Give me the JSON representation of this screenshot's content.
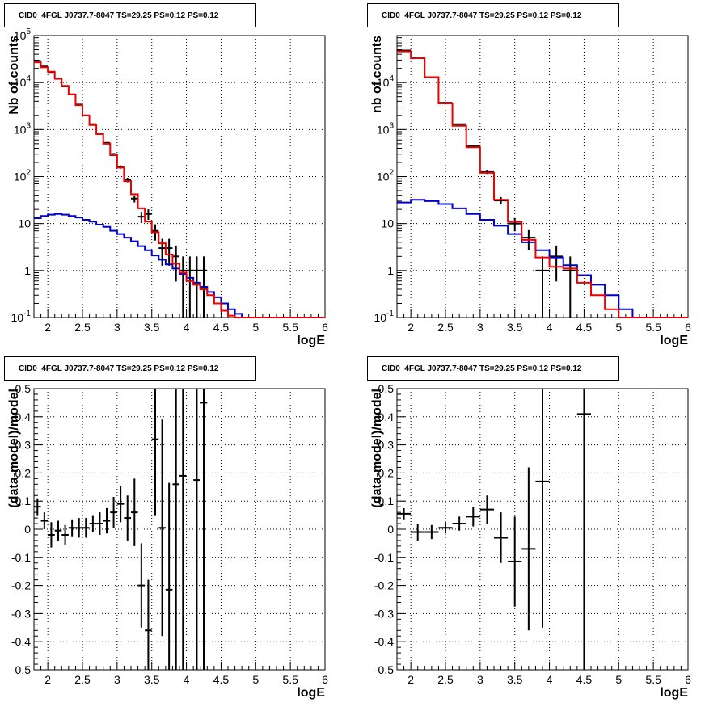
{
  "colors": {
    "data": "#000000",
    "total_model": "#ee0000",
    "background_model": "#0000cc"
  },
  "pads": [
    {
      "title": "CID0_4FGL J0737.7-8047 TS=29.25 PS=0.12 PS=0.12",
      "xlabel": "logE",
      "ylabel": "Nb of counts"
    },
    {
      "title": "CID0_4FGL J0737.7-8047 TS=29.25 PS=0.12 PS=0.12",
      "xlabel": "logE",
      "ylabel": "nb of counts"
    },
    {
      "title": "CID0_4FGL J0737.7-8047 TS=29.25 PS=0.12 PS=0.12",
      "xlabel": "logE",
      "ylabel": "(data-model)/model"
    },
    {
      "title": "CID0_4FGL J0737.7-8047 TS=29.25 PS=0.12 PS=0.12",
      "xlabel": "logE",
      "ylabel": "(data-model)/model"
    }
  ],
  "chart_data": [
    {
      "type": "line",
      "title": "CID0_4FGL J0737.7-8047 TS=29.25 PS=0.12 PS=0.12",
      "xlabel": "logE",
      "ylabel": "Nb of counts",
      "log_y": true,
      "grid": true,
      "xlim": [
        1.8,
        6.0
      ],
      "ylim": [
        0.1,
        100000
      ],
      "xticks": [
        "2",
        "2.5",
        "3",
        "3.5",
        "4",
        "4.5",
        "5",
        "5.5",
        "6"
      ],
      "yticks": [
        "10^{-1}",
        "1",
        "10",
        "10^{2}",
        "10^{3}",
        "10^{4}",
        "10^{5}"
      ],
      "bin_edges": [
        1.8,
        1.9,
        2.0,
        2.1,
        2.2,
        2.3,
        2.4,
        2.5,
        2.6,
        2.7,
        2.8,
        2.9,
        3.0,
        3.1,
        3.2,
        3.3,
        3.4,
        3.5,
        3.6,
        3.7,
        3.8,
        3.9,
        4.0,
        4.1,
        4.2,
        4.3,
        4.4,
        4.5,
        4.6,
        4.7,
        4.8,
        4.9,
        5.0,
        5.1,
        5.2,
        5.3,
        5.4,
        5.5,
        5.6,
        5.7,
        5.8,
        5.9,
        6.0
      ],
      "series": [
        {
          "role": "total_model",
          "values": [
            27000,
            21000,
            17000,
            12000,
            8500,
            5600,
            3300,
            2000,
            1250,
            800,
            500,
            285,
            155,
            80,
            42,
            21,
            11,
            6.5,
            3.8,
            2.2,
            1.4,
            0.9,
            0.6,
            0.5,
            0.4,
            0.3,
            0.2,
            0.14,
            0.11,
            0.1,
            0.1,
            0.1,
            0.1,
            0.1,
            0.1,
            0.1,
            0.1,
            0.1,
            0.1,
            0.1,
            0.1,
            0.1
          ]
        },
        {
          "role": "background_model",
          "values": [
            13,
            14.5,
            15.5,
            16,
            15.5,
            14.5,
            13.5,
            12,
            11,
            9.5,
            8.5,
            7,
            6,
            5,
            4.2,
            3.3,
            2.7,
            2.1,
            1.7,
            1.35,
            1.1,
            0.85,
            0.7,
            0.55,
            0.45,
            0.35,
            0.27,
            0.2,
            0.15,
            0.12,
            0.1,
            0.1,
            0.1,
            0.1,
            0.1,
            0.1,
            0.1,
            0.1,
            0.1,
            0.1,
            0.1,
            0.1
          ]
        },
        {
          "role": "data",
          "points": [
            {
              "x": 1.85,
              "y": 29000
            },
            {
              "x": 1.95,
              "y": 22000
            },
            {
              "x": 2.05,
              "y": 16700
            },
            {
              "x": 2.15,
              "y": 12000
            },
            {
              "x": 2.25,
              "y": 8300
            },
            {
              "x": 2.35,
              "y": 5600
            },
            {
              "x": 2.45,
              "y": 3400
            },
            {
              "x": 2.55,
              "y": 2000
            },
            {
              "x": 2.65,
              "y": 1300
            },
            {
              "x": 2.75,
              "y": 830
            },
            {
              "x": 2.85,
              "y": 520
            },
            {
              "x": 2.95,
              "y": 300
            },
            {
              "x": 3.05,
              "y": 160
            },
            {
              "x": 3.15,
              "y": 85
            },
            {
              "x": 3.25,
              "y": 34
            },
            {
              "x": 3.35,
              "y": 14
            },
            {
              "x": 3.45,
              "y": 16
            },
            {
              "x": 3.55,
              "y": 7
            },
            {
              "x": 3.65,
              "y": 3
            },
            {
              "x": 3.75,
              "y": 3
            },
            {
              "x": 3.85,
              "y": 2
            },
            {
              "x": 3.95,
              "y": 1
            },
            {
              "x": 4.05,
              "y": 1
            },
            {
              "x": 4.15,
              "y": 1
            },
            {
              "x": 4.25,
              "y": 1
            }
          ]
        }
      ]
    },
    {
      "type": "line",
      "title": "CID0_4FGL J0737.7-8047 TS=29.25 PS=0.12 PS=0.12",
      "xlabel": "logE",
      "ylabel": "nb of counts",
      "log_y": true,
      "grid": true,
      "xlim": [
        1.8,
        6.0
      ],
      "ylim": [
        0.1,
        100000
      ],
      "xticks": [
        "2",
        "2.5",
        "3",
        "3.5",
        "4",
        "4.5",
        "5",
        "5.5",
        "6"
      ],
      "yticks": [
        "10^{-1}",
        "1",
        "10",
        "10^{2}",
        "10^{3}",
        "10^{4}"
      ],
      "bin_edges": [
        1.8,
        2.0,
        2.2,
        2.4,
        2.6,
        2.8,
        3.0,
        3.2,
        3.4,
        3.6,
        3.8,
        4.0,
        4.2,
        4.4,
        4.6,
        4.8,
        5.0,
        5.2,
        5.4,
        5.6,
        5.8,
        6.0
      ],
      "series": [
        {
          "role": "total_model",
          "values": [
            46000,
            33000,
            13000,
            3600,
            1200,
            420,
            120,
            32,
            11,
            4.5,
            1.9,
            1.2,
            1.1,
            0.55,
            0.3,
            0.15,
            0.1,
            0.1,
            0.1,
            0.1,
            0.1
          ]
        },
        {
          "role": "background_model",
          "values": [
            28,
            32,
            30,
            26,
            21,
            16,
            12,
            9,
            6,
            4,
            2.7,
            1.9,
            1.3,
            0.8,
            0.5,
            0.3,
            0.15,
            0.1,
            0.1,
            0.1,
            0.1
          ]
        },
        {
          "role": "data",
          "points": [
            {
              "x": 1.9,
              "y": 48000
            },
            {
              "x": 2.1,
              "y": 33000
            },
            {
              "x": 2.3,
              "y": 13000
            },
            {
              "x": 2.5,
              "y": 3700
            },
            {
              "x": 2.7,
              "y": 1300
            },
            {
              "x": 2.9,
              "y": 440
            },
            {
              "x": 3.1,
              "y": 125
            },
            {
              "x": 3.3,
              "y": 31
            },
            {
              "x": 3.5,
              "y": 10
            },
            {
              "x": 3.7,
              "y": 5
            },
            {
              "x": 3.9,
              "y": 1
            },
            {
              "x": 4.1,
              "y": 2
            },
            {
              "x": 4.3,
              "y": 1
            }
          ]
        }
      ]
    },
    {
      "type": "scatter",
      "title": "CID0_4FGL J0737.7-8047 TS=29.25 PS=0.12 PS=0.12",
      "xlabel": "logE",
      "ylabel": "(data-model)/model",
      "grid": true,
      "xlim": [
        1.8,
        6.0
      ],
      "ylim": [
        -0.5,
        0.5
      ],
      "xticks": [
        "2",
        "2.5",
        "3",
        "3.5",
        "4",
        "4.5",
        "5",
        "5.5",
        "6"
      ],
      "yticks": [
        "-0.5",
        "-0.4",
        "-0.3",
        "-0.2",
        "-0.1",
        "0",
        "0.1",
        "0.2",
        "0.3",
        "0.4",
        "0.5"
      ],
      "points": [
        {
          "x": 1.85,
          "y": 0.08,
          "err": 0.03
        },
        {
          "x": 1.95,
          "y": 0.03,
          "err": 0.03
        },
        {
          "x": 2.05,
          "y": -0.02,
          "err": 0.045
        },
        {
          "x": 2.15,
          "y": -0.005,
          "err": 0.035
        },
        {
          "x": 2.25,
          "y": -0.02,
          "err": 0.035
        },
        {
          "x": 2.35,
          "y": 0.005,
          "err": 0.03
        },
        {
          "x": 2.45,
          "y": 0.005,
          "err": 0.035
        },
        {
          "x": 2.55,
          "y": 0.005,
          "err": 0.035
        },
        {
          "x": 2.65,
          "y": 0.02,
          "err": 0.03
        },
        {
          "x": 2.75,
          "y": 0.02,
          "err": 0.04
        },
        {
          "x": 2.85,
          "y": 0.03,
          "err": 0.045
        },
        {
          "x": 2.95,
          "y": 0.06,
          "err": 0.055
        },
        {
          "x": 3.05,
          "y": 0.09,
          "err": 0.065
        },
        {
          "x": 3.15,
          "y": 0.04,
          "err": 0.08
        },
        {
          "x": 3.25,
          "y": 0.06,
          "err": 0.12
        },
        {
          "x": 3.35,
          "y": -0.2,
          "err": 0.15
        },
        {
          "x": 3.45,
          "y": -0.36,
          "err": 0.18
        },
        {
          "x": 3.55,
          "y": 0.32,
          "err": 0.27
        },
        {
          "x": 3.65,
          "y": 0.005,
          "err": 0.385
        },
        {
          "x": 3.75,
          "y": -0.215,
          "err": 0.38
        },
        {
          "x": 3.85,
          "y": 0.16,
          "err": 0.8
        },
        {
          "x": 3.95,
          "y": 0.19,
          "err": 1.0
        },
        {
          "x": 4.15,
          "y": 0.175,
          "err": 1.0
        },
        {
          "x": 4.25,
          "y": 0.45,
          "err": 1.0
        }
      ]
    },
    {
      "type": "scatter",
      "title": "CID0_4FGL J0737.7-8047 TS=29.25 PS=0.12 PS=0.12",
      "xlabel": "logE",
      "ylabel": "(data-model)/model",
      "grid": true,
      "xlim": [
        1.8,
        6.0
      ],
      "ylim": [
        -0.5,
        0.5
      ],
      "xticks": [
        "2",
        "2.5",
        "3",
        "3.5",
        "4",
        "4.5",
        "5",
        "5.5",
        "6"
      ],
      "yticks": [
        "-0.5",
        "-0.4",
        "-0.3",
        "-0.2",
        "-0.1",
        "0",
        "0.1",
        "0.2",
        "0.3",
        "0.4",
        "0.5"
      ],
      "points": [
        {
          "x": 1.9,
          "y": 0.055,
          "err": 0.02
        },
        {
          "x": 2.1,
          "y": -0.01,
          "err": 0.03
        },
        {
          "x": 2.3,
          "y": -0.01,
          "err": 0.025
        },
        {
          "x": 2.5,
          "y": 0.005,
          "err": 0.02
        },
        {
          "x": 2.7,
          "y": 0.02,
          "err": 0.025
        },
        {
          "x": 2.9,
          "y": 0.045,
          "err": 0.035
        },
        {
          "x": 3.1,
          "y": 0.07,
          "err": 0.05
        },
        {
          "x": 3.3,
          "y": -0.03,
          "err": 0.09
        },
        {
          "x": 3.5,
          "y": -0.115,
          "err": 0.16
        },
        {
          "x": 3.7,
          "y": -0.07,
          "err": 0.29
        },
        {
          "x": 3.9,
          "y": 0.17,
          "err": 0.52
        },
        {
          "x": 4.5,
          "y": 0.41,
          "err": 1.0
        }
      ]
    }
  ]
}
